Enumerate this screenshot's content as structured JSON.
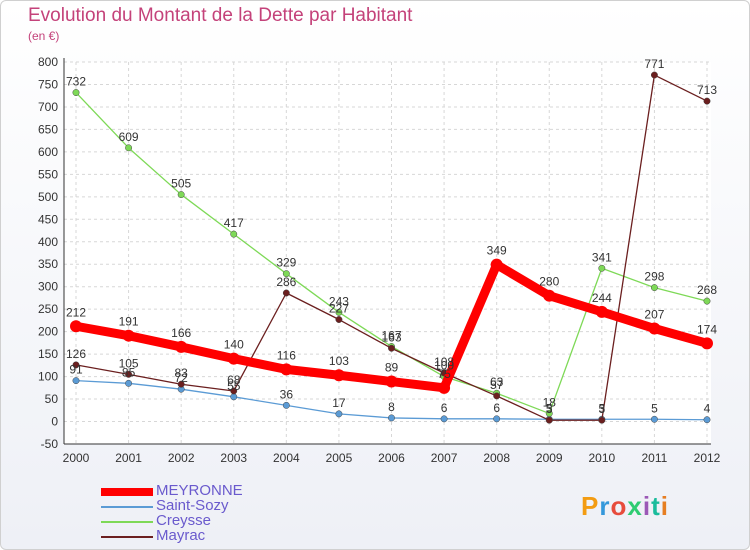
{
  "header": {
    "title": "Evolution du Montant de la Dette par Habitant",
    "unit": "(en €)"
  },
  "logo": {
    "text": "Proxiti",
    "colors": [
      "#f39c12",
      "#3498db",
      "#e74c3c",
      "#2ecc71",
      "#9b59b6",
      "#1abc9c",
      "#e67e22"
    ]
  },
  "chart_data": {
    "type": "line",
    "title": "Evolution du Montant de la Dette par Habitant",
    "ylabel": "(en €)",
    "xlabel": "",
    "categories": [
      "2000",
      "2001",
      "2002",
      "2003",
      "2004",
      "2005",
      "2006",
      "2007",
      "2008",
      "2009",
      "2010",
      "2011",
      "2012"
    ],
    "y_ticks": [
      "800",
      "750",
      "700",
      "650",
      "600",
      "550",
      "500",
      "450",
      "400",
      "350",
      "300",
      "250",
      "200",
      "150",
      "100",
      "50",
      "0",
      "-50"
    ],
    "ylim": [
      -50,
      800
    ],
    "grid": true,
    "series": [
      {
        "name": "MEYRONNE",
        "color": "#ff0000",
        "values": [
          212,
          191,
          166,
          140,
          116,
          103,
          89,
          75,
          349,
          280,
          244,
          207,
          174
        ],
        "labels": [
          "212",
          "191",
          "166",
          "140",
          "116",
          "103",
          "89",
          "75",
          "349",
          "280",
          "244",
          "207",
          "174"
        ]
      },
      {
        "name": "Saint-Sozy",
        "color": "#5b9bd5",
        "values": [
          91,
          85,
          72,
          55,
          36,
          17,
          8,
          6,
          6,
          5,
          5,
          5,
          4
        ],
        "labels": [
          "91",
          "85",
          "72",
          "55",
          "36",
          "17",
          "8",
          "6",
          "6",
          "5",
          "5",
          "5",
          "4"
        ]
      },
      {
        "name": "Creysse",
        "color": "#7ed957",
        "values": [
          732,
          609,
          505,
          417,
          329,
          243,
          167,
          100,
          63,
          18,
          341,
          298,
          268
        ],
        "labels": [
          "732",
          "609",
          "505",
          "417",
          "329",
          "243",
          "167",
          "100",
          "63",
          "18",
          "341",
          "298",
          "268"
        ]
      },
      {
        "name": "Mayrac",
        "color": "#6b1f1f",
        "values": [
          126,
          105,
          83,
          68,
          286,
          227,
          163,
          108,
          57,
          3,
          3,
          771,
          713
        ],
        "labels": [
          "126",
          "105",
          "83",
          "68",
          "286",
          "227",
          "163",
          "108",
          "57",
          "3",
          "3",
          "771",
          "713"
        ]
      }
    ]
  }
}
